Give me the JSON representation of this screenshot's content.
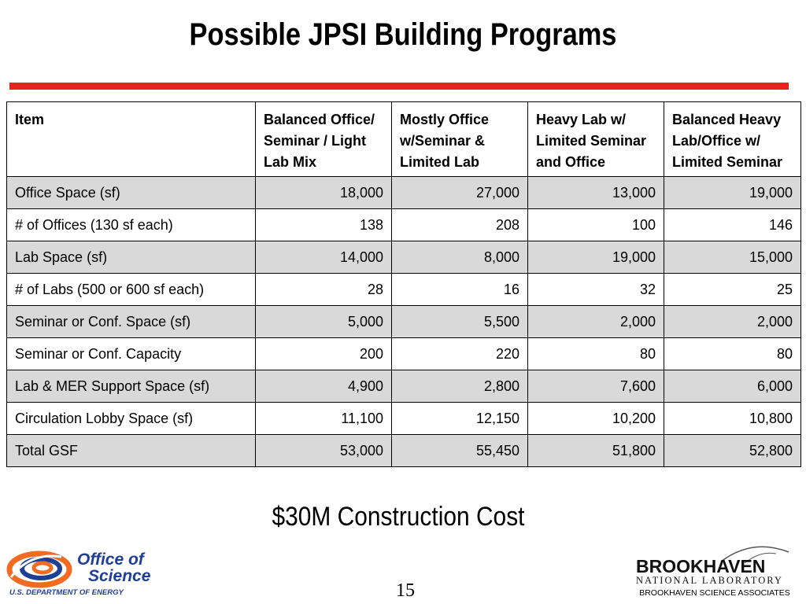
{
  "slide": {
    "title": "Possible JPSI Building Programs",
    "cost_text": "$30M Construction Cost",
    "page_number": "15"
  },
  "table": {
    "headers": [
      "Item",
      "Balanced Office/ Seminar / Light Lab Mix",
      "Mostly Office w/Seminar & Limited Lab",
      "Heavy Lab w/ Limited Seminar and Office",
      "Balanced Heavy Lab/Office w/ Limited Seminar"
    ],
    "rows": [
      [
        "Office Space (sf)",
        "18,000",
        "27,000",
        "13,000",
        "19,000"
      ],
      [
        "# of Offices (130 sf each)",
        "138",
        "208",
        "100",
        "146"
      ],
      [
        "Lab Space (sf)",
        "14,000",
        "8,000",
        "19,000",
        "15,000"
      ],
      [
        "# of Labs (500 or 600 sf each)",
        "28",
        "16",
        "32",
        "25"
      ],
      [
        "Seminar or Conf. Space (sf)",
        "5,000",
        "5,500",
        "2,000",
        "2,000"
      ],
      [
        "Seminar or Conf. Capacity",
        "200",
        "220",
        "80",
        "80"
      ],
      [
        "Lab & MER Support Space (sf)",
        "4,900",
        "2,800",
        "7,600",
        "6,000"
      ],
      [
        "Circulation Lobby Space (sf)",
        "11,100",
        "12,150",
        "10,200",
        "10,800"
      ],
      [
        "Total GSF",
        "53,000",
        "55,450",
        "51,800",
        "52,800"
      ]
    ]
  },
  "logos": {
    "doe": {
      "line1": "Office of",
      "line2": "Science",
      "line3": "U.S. DEPARTMENT OF ENERGY",
      "icon": "doe-swirl-logo"
    },
    "bnl": {
      "name": "BROOKHAVEN",
      "subtitle": "NATIONAL LABORATORY",
      "associates": "BROOKHAVEN SCIENCE ASSOCIATES",
      "icon": "bnl-logo"
    }
  },
  "colors": {
    "accent_bar": "#e8231f",
    "shaded_row": "#d9d9d9",
    "doe_blue": "#1f3f95",
    "doe_orange": "#f26b21"
  }
}
